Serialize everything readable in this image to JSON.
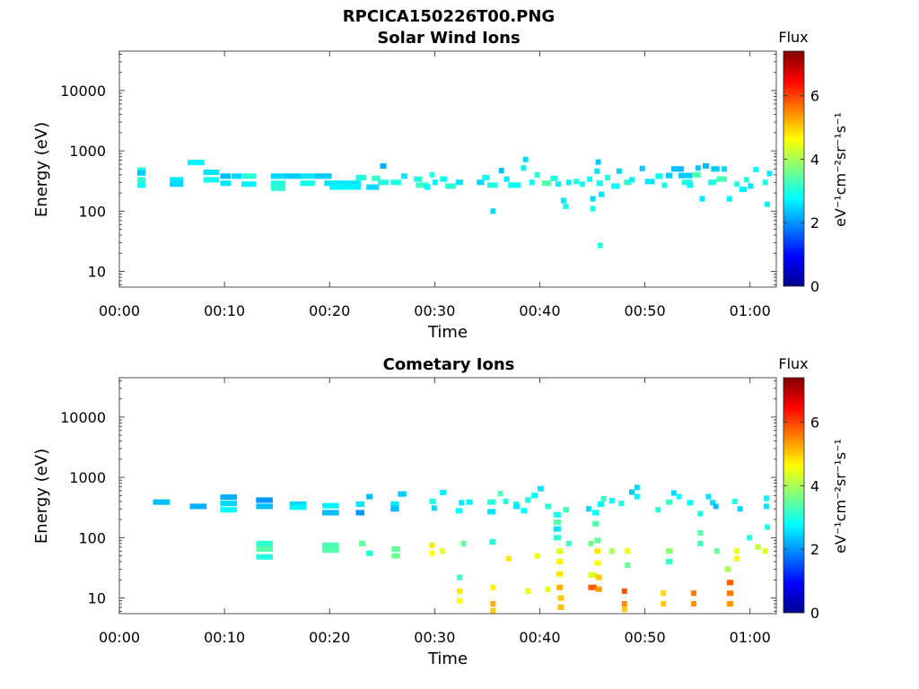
{
  "title": "RPCICA150226T00.PNG",
  "colorbar": {
    "title": "Flux",
    "label": "eV⁻¹cm⁻²sr⁻¹s⁻¹",
    "ticks": [
      0,
      2,
      4,
      6
    ],
    "range": [
      0,
      7.4
    ],
    "colormap": "jet"
  },
  "chart_data": [
    {
      "type": "heatmap",
      "title": "Solar Wind Ions",
      "xlabel": "Time",
      "ylabel": "Energy (eV)",
      "x_unit": "minutes",
      "x_ticks": [
        0,
        10,
        20,
        30,
        40,
        50,
        60
      ],
      "x_tick_labels": [
        "00:00",
        "00:10",
        "00:20",
        "00:30",
        "00:40",
        "00:50",
        "01:00"
      ],
      "xlim": [
        0,
        62.5
      ],
      "y_scale": "log",
      "y_ticks": [
        10,
        100,
        1000,
        10000
      ],
      "y_tick_labels": [
        "10",
        "100",
        "1000",
        "10000"
      ],
      "ylim": [
        5.5,
        45000
      ],
      "grid": false,
      "cells": [
        [
          1.7,
          0.8,
          480,
          3.0
        ],
        [
          1.7,
          0.8,
          430,
          2.4
        ],
        [
          1.7,
          0.8,
          330,
          3.1
        ],
        [
          1.7,
          0.8,
          270,
          2.8
        ],
        [
          4.8,
          1.3,
          330,
          2.6
        ],
        [
          4.8,
          1.3,
          280,
          2.5
        ],
        [
          6.5,
          1.6,
          640,
          2.7
        ],
        [
          8.0,
          1.5,
          440,
          2.6
        ],
        [
          8.0,
          1.5,
          330,
          2.9
        ],
        [
          9.6,
          1.0,
          380,
          2.3
        ],
        [
          9.6,
          1.0,
          290,
          2.6
        ],
        [
          10.7,
          1.4,
          380,
          2.5
        ],
        [
          11.6,
          1.4,
          380,
          3.1
        ],
        [
          11.6,
          1.4,
          280,
          2.7
        ],
        [
          14.4,
          1.4,
          380,
          2.5
        ],
        [
          14.4,
          1.4,
          290,
          3.0
        ],
        [
          14.4,
          1.4,
          240,
          3.1
        ],
        [
          15.8,
          1.4,
          380,
          2.4
        ],
        [
          17.2,
          1.4,
          380,
          2.6
        ],
        [
          17.2,
          1.4,
          290,
          2.9
        ],
        [
          18.6,
          1.6,
          380,
          2.4
        ],
        [
          19.5,
          3.5,
          290,
          2.6
        ],
        [
          20.0,
          3.0,
          250,
          2.7
        ],
        [
          22.5,
          1.0,
          360,
          3.0
        ],
        [
          23.5,
          1.2,
          250,
          2.5
        ],
        [
          24.0,
          0.8,
          350,
          3.2
        ],
        [
          24.6,
          1.0,
          300,
          3.0
        ],
        [
          24.8,
          0.6,
          560,
          2.2
        ],
        [
          25.8,
          1.0,
          300,
          3.0
        ],
        [
          26.8,
          0.6,
          380,
          2.6
        ],
        [
          28.0,
          0.8,
          340,
          3.0
        ],
        [
          28.2,
          1.2,
          270,
          3.2
        ],
        [
          29.0,
          0.6,
          250,
          2.8
        ],
        [
          29.5,
          0.5,
          400,
          3.0
        ],
        [
          29.8,
          0.5,
          300,
          2.7
        ],
        [
          30.5,
          0.7,
          340,
          2.8
        ],
        [
          31.0,
          1.0,
          260,
          3.1
        ],
        [
          32.0,
          0.7,
          300,
          2.6
        ],
        [
          34.0,
          0.7,
          300,
          2.5
        ],
        [
          34.5,
          0.7,
          360,
          2.9
        ],
        [
          35.0,
          1.0,
          270,
          3.0
        ],
        [
          35.3,
          0.5,
          100,
          2.5
        ],
        [
          36.1,
          0.5,
          470,
          2.3
        ],
        [
          36.6,
          0.5,
          340,
          2.6
        ],
        [
          37.0,
          1.2,
          270,
          2.8
        ],
        [
          38.2,
          0.5,
          520,
          2.7
        ],
        [
          38.4,
          0.5,
          720,
          2.5
        ],
        [
          39.0,
          0.5,
          300,
          2.8
        ],
        [
          39.5,
          0.5,
          400,
          3.1
        ],
        [
          40.2,
          0.9,
          290,
          3.4
        ],
        [
          41.0,
          0.7,
          350,
          3.0
        ],
        [
          41.5,
          0.5,
          280,
          2.7
        ],
        [
          42.0,
          0.5,
          150,
          2.6
        ],
        [
          42.2,
          0.5,
          120,
          3.0
        ],
        [
          42.5,
          0.5,
          300,
          2.7
        ],
        [
          43.2,
          0.5,
          310,
          3.0
        ],
        [
          43.8,
          0.5,
          280,
          2.9
        ],
        [
          44.5,
          0.5,
          340,
          2.8
        ],
        [
          44.8,
          0.5,
          160,
          2.5
        ],
        [
          44.8,
          0.5,
          110,
          3.0
        ],
        [
          45.3,
          0.5,
          650,
          2.4
        ],
        [
          45.2,
          0.5,
          460,
          2.6
        ],
        [
          45.4,
          0.6,
          290,
          2.9
        ],
        [
          45.6,
          0.5,
          190,
          2.6
        ],
        [
          45.5,
          0.5,
          27,
          3.0
        ],
        [
          46.2,
          0.5,
          360,
          3.0
        ],
        [
          46.8,
          0.8,
          260,
          2.8
        ],
        [
          47.3,
          0.5,
          460,
          2.5
        ],
        [
          48.0,
          0.7,
          300,
          3.1
        ],
        [
          48.5,
          0.5,
          330,
          2.7
        ],
        [
          49.5,
          0.5,
          510,
          2.4
        ],
        [
          50.0,
          0.9,
          310,
          2.6
        ],
        [
          51.0,
          0.7,
          380,
          2.8
        ],
        [
          51.6,
          0.5,
          270,
          3.0
        ],
        [
          52.0,
          0.6,
          390,
          2.4
        ],
        [
          52.5,
          1.2,
          500,
          2.3
        ],
        [
          53.2,
          1.3,
          390,
          2.4
        ],
        [
          53.5,
          1.0,
          300,
          3.0
        ],
        [
          54.0,
          0.6,
          270,
          2.7
        ],
        [
          54.5,
          0.8,
          400,
          3.4
        ],
        [
          54.8,
          0.5,
          520,
          2.4
        ],
        [
          55.2,
          0.5,
          160,
          2.6
        ],
        [
          55.5,
          0.6,
          560,
          2.3
        ],
        [
          56.0,
          0.8,
          300,
          3.0
        ],
        [
          56.3,
          0.8,
          500,
          2.4
        ],
        [
          56.8,
          1.0,
          340,
          3.3
        ],
        [
          57.3,
          0.5,
          500,
          2.5
        ],
        [
          57.8,
          0.5,
          160,
          2.7
        ],
        [
          58.5,
          0.5,
          280,
          3.0
        ],
        [
          59.0,
          0.7,
          230,
          2.7
        ],
        [
          59.4,
          0.5,
          330,
          3.0
        ],
        [
          59.8,
          0.5,
          260,
          2.6
        ],
        [
          60.3,
          0.5,
          490,
          2.8
        ],
        [
          61.2,
          0.5,
          300,
          3.0
        ],
        [
          61.4,
          0.5,
          130,
          2.7
        ],
        [
          61.6,
          0.5,
          420,
          2.6
        ]
      ]
    },
    {
      "type": "heatmap",
      "title": "Cometary Ions",
      "xlabel": "Time",
      "ylabel": "Energy (eV)",
      "x_unit": "minutes",
      "x_ticks": [
        0,
        10,
        20,
        30,
        40,
        50,
        60
      ],
      "x_tick_labels": [
        "00:00",
        "00:10",
        "00:20",
        "00:30",
        "00:40",
        "00:50",
        "01:00"
      ],
      "xlim": [
        0,
        62.5
      ],
      "y_scale": "log",
      "y_ticks": [
        10,
        100,
        1000,
        10000
      ],
      "y_tick_labels": [
        "10",
        "100",
        "1000",
        "10000"
      ],
      "ylim": [
        5.5,
        45000
      ],
      "grid": false,
      "cells": [
        [
          3.2,
          1.6,
          390,
          2.3
        ],
        [
          6.7,
          1.6,
          330,
          2.2
        ],
        [
          9.6,
          1.6,
          470,
          2.2
        ],
        [
          9.6,
          1.6,
          370,
          2.5
        ],
        [
          9.6,
          1.6,
          290,
          2.8
        ],
        [
          13.0,
          1.6,
          420,
          2.0
        ],
        [
          13.0,
          1.6,
          330,
          2.3
        ],
        [
          16.2,
          1.6,
          360,
          2.5
        ],
        [
          16.2,
          1.6,
          320,
          2.7
        ],
        [
          13.0,
          1.6,
          80,
          3.1
        ],
        [
          13.0,
          1.6,
          65,
          3.4
        ],
        [
          13.0,
          1.6,
          48,
          3.0
        ],
        [
          19.3,
          1.6,
          340,
          2.7
        ],
        [
          19.3,
          1.6,
          260,
          2.3
        ],
        [
          19.3,
          1.6,
          75,
          3.3
        ],
        [
          19.3,
          1.6,
          62,
          3.4
        ],
        [
          22.5,
          0.8,
          360,
          2.6
        ],
        [
          22.5,
          0.8,
          260,
          2.0
        ],
        [
          22.8,
          0.6,
          80,
          3.5
        ],
        [
          23.5,
          0.6,
          480,
          2.3
        ],
        [
          23.5,
          0.6,
          55,
          3.0
        ],
        [
          25.8,
          0.8,
          360,
          2.6
        ],
        [
          25.8,
          0.8,
          300,
          2.3
        ],
        [
          26.5,
          0.8,
          530,
          2.4
        ],
        [
          25.9,
          0.8,
          65,
          3.5
        ],
        [
          25.9,
          0.8,
          50,
          3.6
        ],
        [
          29.5,
          0.6,
          400,
          3.0
        ],
        [
          29.7,
          0.5,
          310,
          2.5
        ],
        [
          29.5,
          0.5,
          75,
          4.8
        ],
        [
          29.5,
          0.5,
          55,
          4.6
        ],
        [
          30.5,
          0.6,
          560,
          2.7
        ],
        [
          30.5,
          0.5,
          60,
          4.4
        ],
        [
          32.0,
          0.6,
          280,
          2.8
        ],
        [
          32.3,
          0.5,
          380,
          2.6
        ],
        [
          32.5,
          0.5,
          80,
          3.5
        ],
        [
          32.1,
          0.5,
          22,
          3.2
        ],
        [
          32.1,
          0.5,
          13,
          4.8
        ],
        [
          32.1,
          0.5,
          9,
          4.6
        ],
        [
          33.0,
          0.6,
          390,
          2.7
        ],
        [
          35.0,
          0.8,
          390,
          3.0
        ],
        [
          35.0,
          0.8,
          270,
          2.6
        ],
        [
          35.2,
          0.6,
          85,
          3.0
        ],
        [
          35.3,
          0.5,
          15,
          4.7
        ],
        [
          35.3,
          0.5,
          8,
          5.2
        ],
        [
          35.3,
          0.5,
          6.2,
          5.0
        ],
        [
          36.0,
          0.5,
          540,
          3.3
        ],
        [
          36.5,
          0.5,
          400,
          3.0
        ],
        [
          37.5,
          0.5,
          360,
          2.9
        ],
        [
          36.8,
          0.5,
          45,
          4.8
        ],
        [
          37.5,
          0.6,
          330,
          2.6
        ],
        [
          38.2,
          0.6,
          280,
          2.8
        ],
        [
          38.6,
          0.5,
          420,
          3.0
        ],
        [
          38.6,
          0.5,
          13,
          4.5
        ],
        [
          39.2,
          0.6,
          500,
          2.8
        ],
        [
          39.8,
          0.6,
          650,
          2.6
        ],
        [
          39.5,
          0.5,
          50,
          4.5
        ],
        [
          40.5,
          0.6,
          330,
          3.0
        ],
        [
          40.5,
          0.5,
          14,
          4.4
        ],
        [
          41.3,
          0.7,
          240,
          2.9
        ],
        [
          41.3,
          0.7,
          180,
          3.4
        ],
        [
          41.3,
          0.7,
          140,
          2.6
        ],
        [
          41.3,
          0.7,
          100,
          3.1
        ],
        [
          41.6,
          0.6,
          60,
          4.4
        ],
        [
          41.6,
          0.6,
          40,
          4.7
        ],
        [
          41.6,
          0.6,
          25,
          4.8
        ],
        [
          41.6,
          0.6,
          15,
          5.2
        ],
        [
          41.7,
          0.6,
          10,
          5.0
        ],
        [
          41.7,
          0.6,
          7,
          5.1
        ],
        [
          42.2,
          0.6,
          290,
          3.3
        ],
        [
          42.5,
          0.5,
          80,
          3.2
        ],
        [
          44.4,
          0.5,
          300,
          2.5
        ],
        [
          44.6,
          0.5,
          80,
          3.6
        ],
        [
          44.6,
          0.8,
          24,
          4.4
        ],
        [
          44.6,
          0.8,
          15,
          5.8
        ],
        [
          45.0,
          0.6,
          260,
          2.8
        ],
        [
          45.0,
          0.6,
          170,
          3.4
        ],
        [
          45.2,
          0.6,
          90,
          3.5
        ],
        [
          45.2,
          0.6,
          60,
          4.8
        ],
        [
          45.2,
          0.6,
          38,
          4.6
        ],
        [
          45.3,
          0.6,
          22,
          5.0
        ],
        [
          45.3,
          0.6,
          14,
          5.3
        ],
        [
          45.5,
          0.6,
          360,
          2.7
        ],
        [
          45.8,
          0.5,
          440,
          3.2
        ],
        [
          46.6,
          0.5,
          410,
          2.8
        ],
        [
          46.6,
          0.5,
          60,
          4.0
        ],
        [
          47.5,
          0.5,
          370,
          3.0
        ],
        [
          47.8,
          0.5,
          13,
          5.9
        ],
        [
          47.8,
          0.5,
          8,
          5.5
        ],
        [
          47.8,
          0.5,
          6.5,
          5.0
        ],
        [
          48.1,
          0.5,
          60,
          4.5
        ],
        [
          48.1,
          0.5,
          35,
          3.5
        ],
        [
          48.5,
          0.5,
          570,
          2.4
        ],
        [
          49.0,
          0.5,
          680,
          2.5
        ],
        [
          49.0,
          0.5,
          480,
          2.7
        ],
        [
          51.0,
          0.5,
          290,
          3.0
        ],
        [
          51.5,
          0.5,
          12,
          4.9
        ],
        [
          51.5,
          0.5,
          8,
          5.0
        ],
        [
          52.0,
          0.6,
          390,
          3.2
        ],
        [
          52.0,
          0.6,
          60,
          3.8
        ],
        [
          52.0,
          0.6,
          40,
          3.2
        ],
        [
          52.5,
          0.5,
          550,
          2.5
        ],
        [
          53.0,
          0.5,
          480,
          2.8
        ],
        [
          54.0,
          0.6,
          380,
          2.8
        ],
        [
          54.4,
          0.5,
          12,
          5.6
        ],
        [
          54.4,
          0.5,
          8,
          5.4
        ],
        [
          55.0,
          0.5,
          250,
          3.0
        ],
        [
          55.0,
          0.5,
          120,
          3.4
        ],
        [
          55.0,
          0.5,
          80,
          3.2
        ],
        [
          55.8,
          0.5,
          480,
          2.6
        ],
        [
          56.2,
          0.5,
          380,
          2.5
        ],
        [
          56.5,
          0.5,
          330,
          2.3
        ],
        [
          56.6,
          0.5,
          60,
          3.5
        ],
        [
          57.6,
          0.6,
          30,
          4.0
        ],
        [
          57.8,
          0.6,
          18,
          5.8
        ],
        [
          57.8,
          0.6,
          12,
          5.6
        ],
        [
          57.8,
          0.6,
          8,
          5.4
        ],
        [
          58.3,
          0.5,
          400,
          3.0
        ],
        [
          58.5,
          0.5,
          60,
          4.5
        ],
        [
          58.5,
          0.5,
          45,
          4.7
        ],
        [
          58.8,
          0.5,
          300,
          2.5
        ],
        [
          59.7,
          0.5,
          100,
          3.0
        ],
        [
          60.5,
          0.5,
          70,
          4.2
        ],
        [
          61.3,
          0.5,
          330,
          2.6
        ],
        [
          61.3,
          0.5,
          450,
          2.7
        ],
        [
          61.4,
          0.5,
          150,
          3.0
        ],
        [
          61.2,
          0.5,
          60,
          4.4
        ]
      ]
    }
  ]
}
